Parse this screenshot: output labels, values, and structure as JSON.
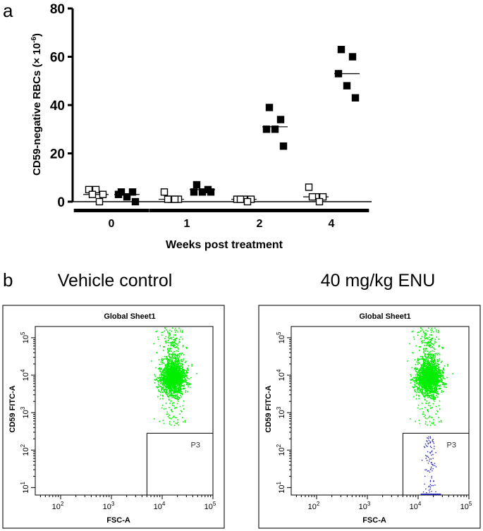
{
  "panel_a_letter": "a",
  "panel_b_letter": "b",
  "chart_data": [
    {
      "type": "scatter",
      "title": "",
      "xlabel": "Weeks post treatment",
      "ylabel": "CD59-negative RBCs (× 10",
      "ylabel_superscript": "-6",
      "ylabel_close": ")",
      "ylim": [
        0,
        80
      ],
      "yticks": [
        0,
        20,
        40,
        60,
        80
      ],
      "categories": [
        "0",
        "1",
        "2",
        "4"
      ],
      "grid": false,
      "legend": "none",
      "series": [
        {
          "marker": "open-square",
          "color": "#000000",
          "points": {
            "0": [
              5,
              5,
              3,
              3,
              0
            ],
            "1": [
              4,
              1,
              1,
              1,
              1
            ],
            "2": [
              1,
              1,
              1,
              1,
              0
            ],
            "4": [
              6,
              2,
              2,
              2,
              0
            ]
          },
          "medians": {
            "0": 3,
            "1": 1,
            "2": 1,
            "4": 2
          }
        },
        {
          "marker": "filled-square",
          "color": "#000000",
          "points": {
            "0": [
              4,
              4,
              3,
              2,
              0
            ],
            "1": [
              7,
              5,
              4,
              4,
              4
            ],
            "2": [
              39,
              34,
              30,
              30,
              23
            ],
            "4": [
              63,
              60,
              53,
              48,
              43
            ]
          },
          "medians": {
            "0": 3,
            "1": 5,
            "2": 31,
            "4": 53
          }
        }
      ]
    },
    {
      "type": "scatter",
      "condition": "Vehicle control",
      "title": "Global Sheet1",
      "xlabel": "FSC-A",
      "ylabel": "CD59 FITC-A",
      "scale": "log",
      "xlim_log10": [
        1.5,
        5.0
      ],
      "ylim_log10": [
        0.8,
        5.3
      ],
      "xticks": [
        "10",
        "10",
        "10",
        "10"
      ],
      "xtick_exponents": [
        "2",
        "3",
        "4",
        "5"
      ],
      "yticks": [
        "10",
        "10",
        "10",
        "10",
        "10"
      ],
      "ytick_exponents": [
        "1",
        "2",
        "3",
        "4",
        "5"
      ],
      "gate_label": "P3",
      "gate_log10": {
        "x": [
          3.7,
          5.0
        ],
        "y": [
          0.8,
          2.45
        ]
      },
      "populations": [
        {
          "name": "CD59-positive cluster",
          "color": "#00ee00",
          "center_log10": [
            4.2,
            3.95
          ],
          "spread_log10": [
            0.12,
            0.22
          ],
          "count": 2200
        }
      ],
      "gate_events": 0
    },
    {
      "type": "scatter",
      "condition": "40 mg/kg ENU",
      "title": "Global Sheet1",
      "xlabel": "FSC-A",
      "ylabel": "CD59 FITC-A",
      "scale": "log",
      "xlim_log10": [
        1.5,
        5.0
      ],
      "ylim_log10": [
        0.8,
        5.3
      ],
      "xticks": [
        "10",
        "10",
        "10",
        "10"
      ],
      "xtick_exponents": [
        "2",
        "3",
        "4",
        "5"
      ],
      "yticks": [
        "10",
        "10",
        "10",
        "10",
        "10"
      ],
      "ytick_exponents": [
        "1",
        "2",
        "3",
        "4",
        "5"
      ],
      "gate_label": "P3",
      "gate_log10": {
        "x": [
          3.7,
          5.0
        ],
        "y": [
          0.8,
          2.45
        ]
      },
      "populations": [
        {
          "name": "CD59-positive cluster",
          "color": "#00ee00",
          "center_log10": [
            4.2,
            3.95
          ],
          "spread_log10": [
            0.12,
            0.22
          ],
          "count": 2200
        }
      ],
      "gate_events": 90,
      "gate_event_color": "#2222aa"
    }
  ]
}
